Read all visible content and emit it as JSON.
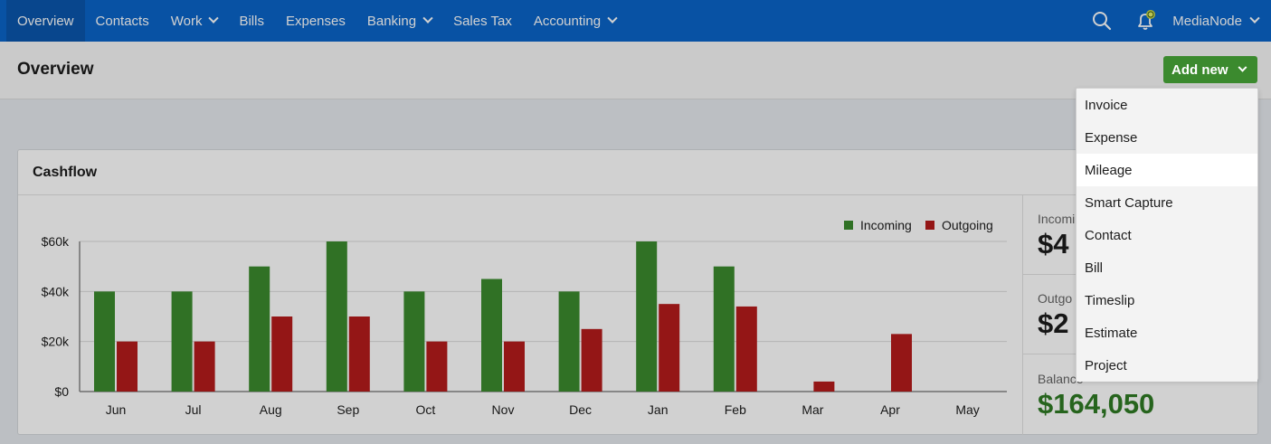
{
  "nav": {
    "items": [
      {
        "label": "Overview",
        "active": true,
        "dropdown": false
      },
      {
        "label": "Contacts",
        "active": false,
        "dropdown": false
      },
      {
        "label": "Work",
        "active": false,
        "dropdown": true
      },
      {
        "label": "Bills",
        "active": false,
        "dropdown": false
      },
      {
        "label": "Expenses",
        "active": false,
        "dropdown": false
      },
      {
        "label": "Banking",
        "active": false,
        "dropdown": true
      },
      {
        "label": "Sales Tax",
        "active": false,
        "dropdown": false
      },
      {
        "label": "Accounting",
        "active": false,
        "dropdown": true
      }
    ],
    "account": "MediaNode"
  },
  "page": {
    "title": "Overview",
    "add_new_label": "Add new"
  },
  "menu": {
    "items": [
      "Invoice",
      "Expense",
      "Mileage",
      "Smart Capture",
      "Contact",
      "Bill",
      "Timeslip",
      "Estimate",
      "Project"
    ],
    "highlighted": "Mileage"
  },
  "cashflow": {
    "title": "Cashflow",
    "stats": [
      {
        "label": "Incomi",
        "value": "$4"
      },
      {
        "label": "Outgo",
        "value": "$2"
      },
      {
        "label": "Balance",
        "value": "$164,050"
      }
    ]
  },
  "colors": {
    "brand_blue": "#0a64c8",
    "incoming": "#3b8a2e",
    "outgoing": "#b51c1c",
    "balance_green": "#2f7a24"
  },
  "chart_data": {
    "type": "bar",
    "categories": [
      "Jun",
      "Jul",
      "Aug",
      "Sep",
      "Oct",
      "Nov",
      "Dec",
      "Jan",
      "Feb",
      "Mar",
      "Apr",
      "May"
    ],
    "series": [
      {
        "name": "Incoming",
        "values": [
          40000,
          40000,
          50000,
          60000,
          40000,
          45000,
          40000,
          60000,
          50000,
          0,
          0,
          0
        ]
      },
      {
        "name": "Outgoing",
        "values": [
          20000,
          20000,
          30000,
          30000,
          20000,
          20000,
          25000,
          35000,
          34000,
          4000,
          23000,
          0
        ]
      }
    ],
    "yticks": [
      "$0",
      "$20k",
      "$40k",
      "$60k"
    ],
    "ylim": [
      0,
      60000
    ],
    "grid": true,
    "legend": "top-right"
  }
}
